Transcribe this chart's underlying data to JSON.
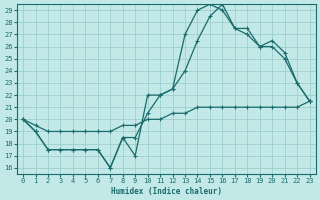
{
  "xlabel": "Humidex (Indice chaleur)",
  "bg_color": "#c2e8e8",
  "grid_color": "#9dcece",
  "line_color": "#1a6b6b",
  "xlim": [
    -0.5,
    23.5
  ],
  "ylim": [
    15.5,
    29.5
  ],
  "xticks": [
    0,
    1,
    2,
    3,
    4,
    5,
    6,
    7,
    8,
    9,
    10,
    11,
    12,
    13,
    14,
    15,
    16,
    17,
    18,
    19,
    20,
    21,
    22,
    23
  ],
  "yticks": [
    16,
    17,
    18,
    19,
    20,
    21,
    22,
    23,
    24,
    25,
    26,
    27,
    28,
    29
  ],
  "y_main": [
    20,
    19,
    17.5,
    17.5,
    17.5,
    17.5,
    17.5,
    16,
    18.5,
    17,
    22,
    22,
    22.5,
    27,
    29,
    29.5,
    29,
    27.5,
    27,
    26,
    26,
    25,
    23,
    21.5
  ],
  "y_reg": [
    20,
    19.5,
    19,
    19,
    19,
    19,
    19,
    19,
    19.5,
    19.5,
    20,
    20,
    20.5,
    20.5,
    21,
    21,
    21,
    21,
    21,
    21,
    21,
    21,
    21,
    21.5
  ],
  "y_third": [
    20,
    19,
    17.5,
    17.5,
    17.5,
    17.5,
    17.5,
    16,
    18.5,
    18.5,
    20.5,
    22,
    22.5,
    24,
    26.5,
    28.5,
    29.5,
    27.5,
    27.5,
    26,
    26.5,
    25.5,
    23,
    21.5
  ]
}
